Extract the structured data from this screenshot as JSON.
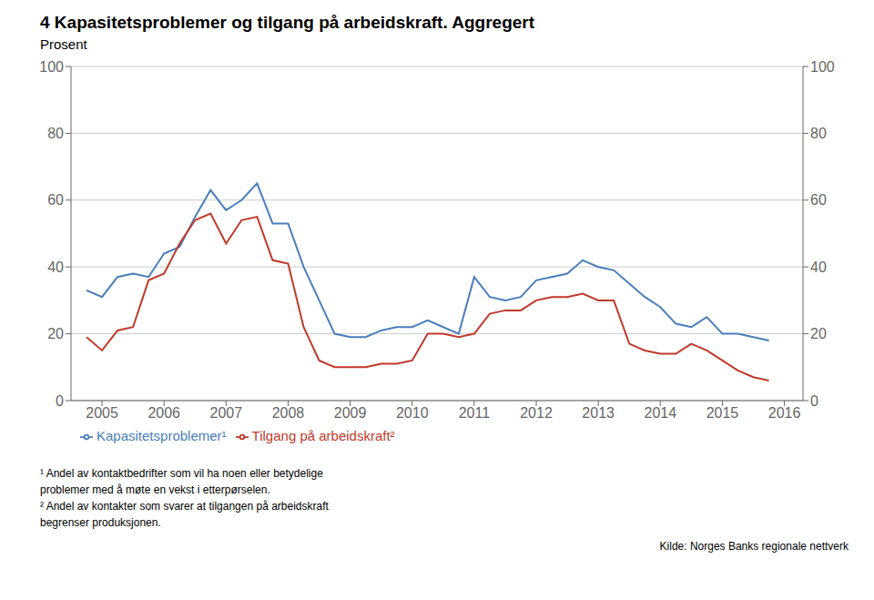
{
  "chart_data": {
    "type": "line",
    "title": "4  Kapasitetsproblemer og tilgang på arbeidskraft. Aggregert",
    "subtitle": "Prosent",
    "x": [
      2004.75,
      2005.0,
      2005.25,
      2005.5,
      2005.75,
      2006.0,
      2006.25,
      2006.5,
      2006.75,
      2007.0,
      2007.25,
      2007.5,
      2007.75,
      2008.0,
      2008.25,
      2008.5,
      2008.75,
      2009.0,
      2009.25,
      2009.5,
      2009.75,
      2010.0,
      2010.25,
      2010.5,
      2010.75,
      2011.0,
      2011.25,
      2011.5,
      2011.75,
      2012.0,
      2012.25,
      2012.5,
      2012.75,
      2013.0,
      2013.25,
      2013.5,
      2013.75,
      2014.0,
      2014.25,
      2014.5,
      2014.75,
      2015.0,
      2015.25,
      2015.5,
      2015.75
    ],
    "series": [
      {
        "name": "Kapasitetsproblemer¹",
        "color": "#4A7EBB",
        "values": [
          33,
          31,
          37,
          38,
          37,
          44,
          46,
          55,
          63,
          57,
          60,
          65,
          53,
          53,
          40,
          30,
          20,
          19,
          19,
          21,
          22,
          22,
          24,
          22,
          20,
          37,
          31,
          30,
          31,
          36,
          37,
          38,
          42,
          40,
          39,
          35,
          31,
          28,
          23,
          22,
          25,
          20,
          20,
          19,
          18
        ]
      },
      {
        "name": "Tilgang på arbeidskraft²",
        "color": "#C0392B",
        "values": [
          19,
          15,
          21,
          22,
          36,
          38,
          47,
          54,
          56,
          47,
          54,
          55,
          42,
          41,
          22,
          12,
          10,
          10,
          10,
          11,
          11,
          12,
          20,
          20,
          19,
          20,
          26,
          27,
          27,
          30,
          31,
          31,
          32,
          30,
          30,
          17,
          15,
          14,
          14,
          17,
          15,
          12,
          9,
          7,
          6
        ]
      }
    ],
    "xlim": [
      2004.5,
      2016.3
    ],
    "xticks": [
      2005,
      2006,
      2007,
      2008,
      2009,
      2010,
      2011,
      2012,
      2013,
      2014,
      2015,
      2016
    ],
    "ylim": [
      0,
      100
    ],
    "yticks": [
      0,
      20,
      40,
      60,
      80,
      100
    ],
    "y2lim": [
      0,
      100
    ],
    "y2ticks": [
      0,
      20,
      40,
      60,
      80,
      100
    ],
    "grid": true,
    "legend": "bottom",
    "footnotes": [
      "¹ Andel av kontaktbedrifter som vil ha noen eller betydelige",
      "problemer med å møte en vekst i etterpørselen.",
      "² Andel av kontakter som svarer at tilgangen på arbeidskraft",
      "begrenser produksjonen."
    ],
    "source": "Kilde: Norges Banks regionale nettverk"
  }
}
